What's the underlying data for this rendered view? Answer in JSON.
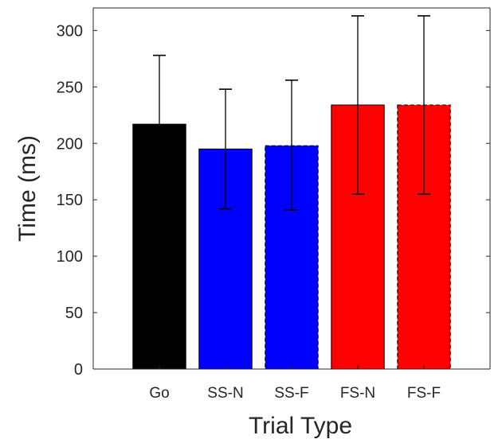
{
  "chart_data": {
    "type": "bar",
    "title": "",
    "xlabel": "Trial Type",
    "ylabel": "Time (ms)",
    "categories": [
      "Go",
      "SS-N",
      "SS-F",
      "FS-N",
      "FS-F"
    ],
    "values": [
      217,
      195,
      198,
      234,
      234
    ],
    "error": [
      {
        "low": 156,
        "high": 278
      },
      {
        "low": 142,
        "high": 248
      },
      {
        "low": 141,
        "high": 256
      },
      {
        "low": 155,
        "high": 313
      },
      {
        "low": 155,
        "high": 313
      }
    ],
    "colors": [
      "#000000",
      "#0000ff",
      "#0000ff",
      "#ff0000",
      "#ff0000"
    ],
    "dashed_edge": [
      false,
      false,
      true,
      false,
      true
    ],
    "ylim": [
      0,
      320
    ],
    "yticks": [
      0,
      50,
      100,
      150,
      200,
      250,
      300
    ],
    "grid": false,
    "legend": "none"
  }
}
